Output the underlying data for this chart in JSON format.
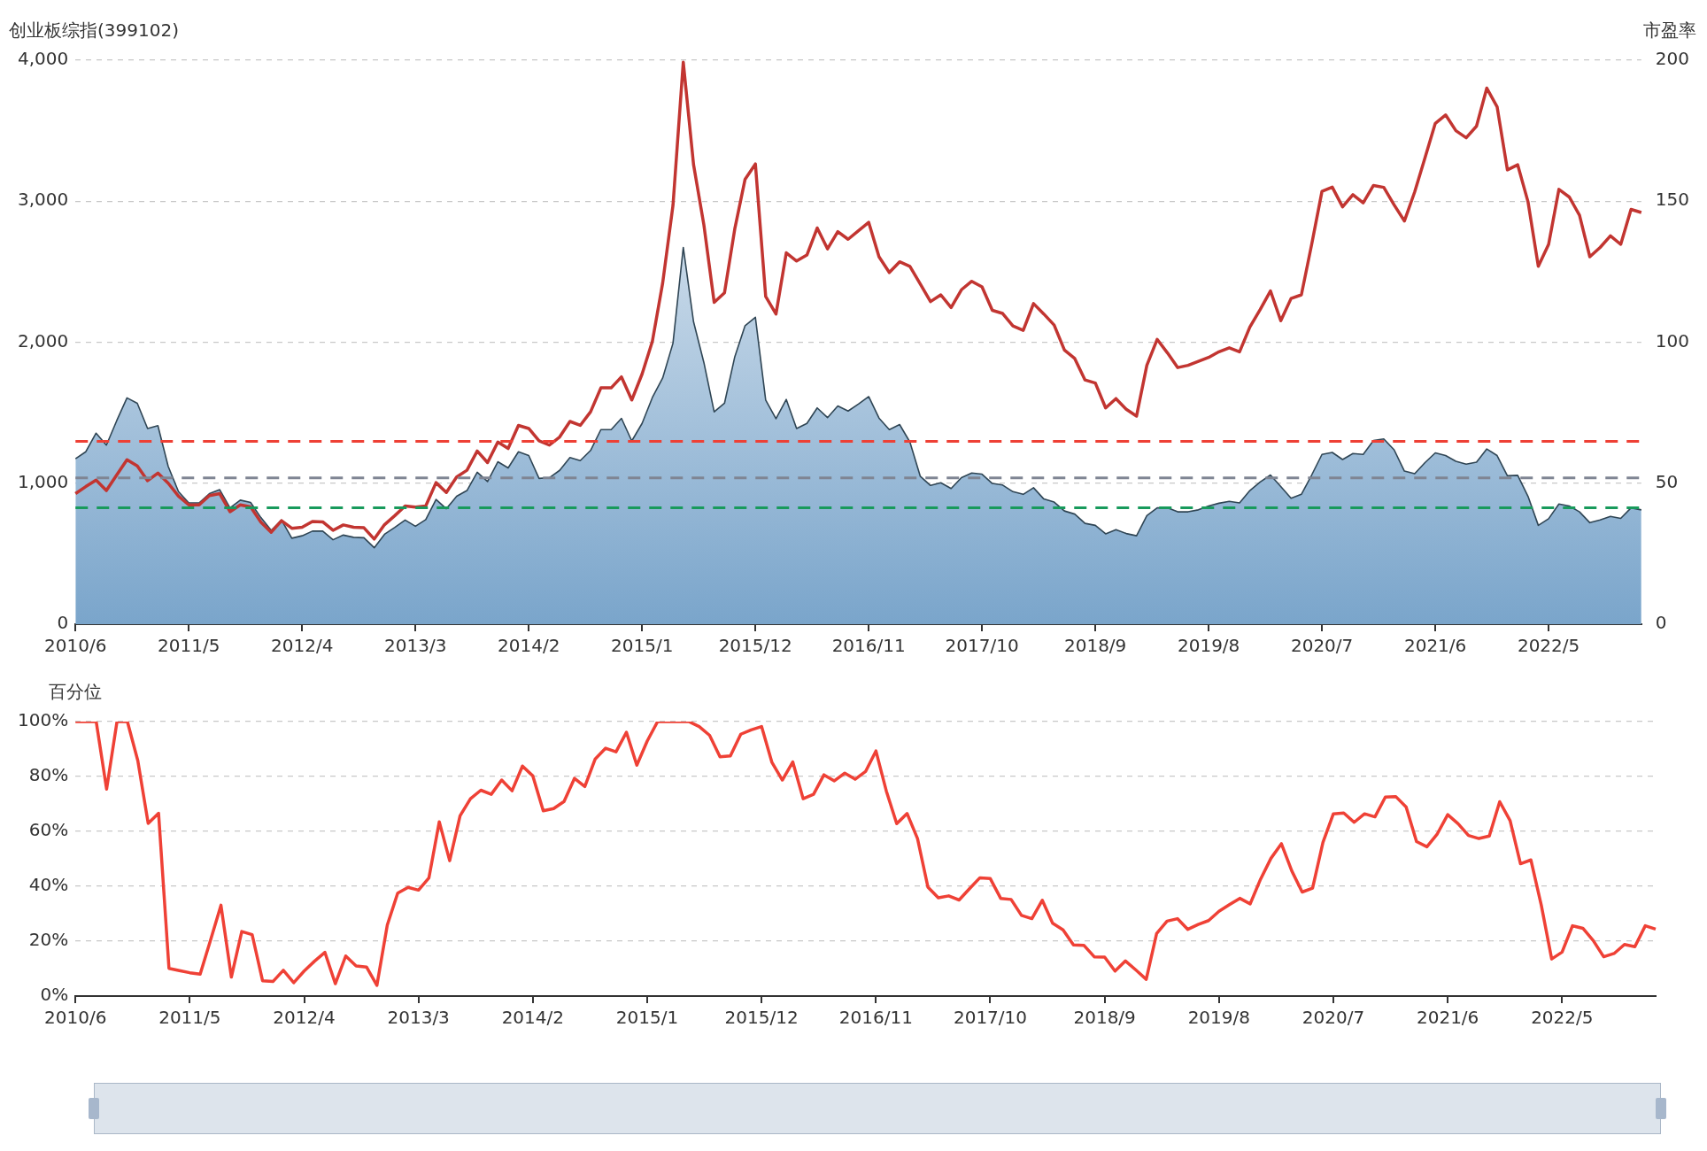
{
  "chart_data": [
    {
      "type": "area",
      "ylabel": "创业板综指(399102)",
      "y2label": "市盈率",
      "categories": [
        "2010/6",
        null,
        null,
        null,
        null,
        null,
        null,
        null,
        null,
        null,
        null,
        "2011/5",
        null,
        null,
        null,
        null,
        null,
        null,
        null,
        null,
        null,
        null,
        "2012/4",
        null,
        null,
        null,
        null,
        null,
        null,
        null,
        null,
        null,
        null,
        "2013/3",
        null,
        null,
        null,
        null,
        null,
        null,
        null,
        null,
        null,
        null,
        "2014/2",
        null,
        null,
        null,
        null,
        null,
        null,
        null,
        null,
        null,
        null,
        "2015/1",
        null,
        null,
        null,
        null,
        null,
        null,
        null,
        null,
        null,
        null,
        "2015/12",
        null,
        null,
        null,
        null,
        null,
        null,
        null,
        null,
        null,
        null,
        "2016/11",
        null,
        null,
        null,
        null,
        null,
        null,
        null,
        null,
        null,
        null,
        "2017/10",
        null,
        null,
        null,
        null,
        null,
        null,
        null,
        null,
        null,
        null,
        "2018/9",
        null,
        null,
        null,
        null,
        null,
        null,
        null,
        null,
        null,
        null,
        "2019/8",
        null,
        null,
        null,
        null,
        null,
        null,
        null,
        null,
        null,
        null,
        "2020/7",
        null,
        null,
        null,
        null,
        null,
        null,
        null,
        null,
        null,
        null,
        "2021/6",
        null,
        null,
        null,
        null,
        null,
        null,
        null,
        null,
        null,
        null,
        "2022/5",
        null,
        null,
        null,
        null,
        null,
        null,
        null,
        null,
        null
      ],
      "series": [
        {
          "color": "#7aa5cb",
          "values": [
            1174,
            1223,
            1355,
            1270,
            1443,
            1605,
            1567,
            1388,
            1408,
            1119,
            940,
            860,
            860,
            926,
            954,
            825,
            880,
            863,
            756,
            665,
            739,
            610,
            627,
            660,
            660,
            599,
            632,
            616,
            613,
            542,
            638,
            687,
            739,
            695,
            742,
            885,
            819,
            907,
            948,
            1078,
            1012,
            1152,
            1108,
            1223,
            1196,
            1034,
            1039,
            1091,
            1182,
            1160,
            1232,
            1380,
            1380,
            1460,
            1300,
            1424,
            1608,
            1746,
            1993,
            2672,
            2144,
            1856,
            1506,
            1567,
            1897,
            2117,
            2177,
            1589,
            1457,
            1594,
            1388,
            1424,
            1534,
            1465,
            1548,
            1512,
            1561,
            1614,
            1462,
            1380,
            1416,
            1292,
            1050,
            984,
            1003,
            962,
            1039,
            1072,
            1064,
            998,
            987,
            940,
            921,
            968,
            888,
            866,
            803,
            781,
            715,
            701,
            641,
            671,
            643,
            627,
            770,
            825,
            825,
            797,
            797,
            811,
            838,
            858,
            871,
            860,
            948,
            1009,
            1058,
            976,
            893,
            921,
            1058,
            1204,
            1218,
            1168,
            1210,
            1204,
            1303,
            1314,
            1237,
            1086,
            1067,
            1146,
            1215,
            1196,
            1155,
            1135,
            1149,
            1243,
            1196,
            1053,
            1056,
            907,
            701,
            748,
            852,
            838,
            797,
            720,
            739,
            764,
            750,
            825,
            811
          ]
        },
        {
          "type": "line",
          "axis": "y2",
          "color": "#c23531",
          "values": [
            46.3,
            48.8,
            51.1,
            47.4,
            52.9,
            58.3,
            56.1,
            50.9,
            53.6,
            50.0,
            45.4,
            42.3,
            42.3,
            45.6,
            46.3,
            39.9,
            42.3,
            41.6,
            36.2,
            32.6,
            36.7,
            34.0,
            34.4,
            36.4,
            36.3,
            33.3,
            35.2,
            34.4,
            34.2,
            30.2,
            35.3,
            38.5,
            41.9,
            41.5,
            41.9,
            50.2,
            46.7,
            52.2,
            54.6,
            61.4,
            57.3,
            64.6,
            62.3,
            70.5,
            69.4,
            65.0,
            63.5,
            66.4,
            71.9,
            70.5,
            75.3,
            83.8,
            83.8,
            87.7,
            79.5,
            88.7,
            100.3,
            121,
            148.5,
            199.3,
            162.9,
            141.6,
            114.1,
            117.5,
            140.2,
            157.8,
            163.2,
            116.2,
            110,
            131.7,
            128.8,
            130.9,
            140.5,
            133.1,
            139.2,
            136.5,
            139.5,
            142.5,
            130.3,
            124.7,
            128.5,
            126.9,
            120.7,
            114.4,
            116.8,
            112.3,
            118.6,
            121.6,
            119.6,
            111.3,
            110.2,
            105.8,
            104.2,
            113.7,
            110,
            106.1,
            97.2,
            94.2,
            86.6,
            85.5,
            76.7,
            80,
            76.2,
            73.8,
            91.8,
            101,
            96.2,
            91,
            91.8,
            93.2,
            94.6,
            96.6,
            98,
            96.6,
            105.4,
            111.6,
            118.2,
            107.6,
            115.5,
            116.8,
            134.7,
            153.5,
            155,
            148,
            152.3,
            149.4,
            155.6,
            154.9,
            148.7,
            143,
            153.3,
            165.4,
            177.6,
            180.6,
            175,
            172.5,
            176.6,
            190.1,
            183.5,
            161.1,
            162.9,
            149.8,
            126.9,
            134.7,
            154.2,
            151.5,
            145,
            130.3,
            133.6,
            137.7,
            134.7,
            147.1,
            146
          ]
        }
      ],
      "ylim": [
        0,
        4000
      ],
      "yticks": [
        0,
        {
          "value": 1000,
          "label": "1,000"
        },
        {
          "value": 2000,
          "label": "2,000"
        },
        {
          "value": 3000,
          "label": "3,000"
        },
        {
          "value": 4000,
          "label": "4,000"
        }
      ],
      "y2lim": [
        0,
        200
      ],
      "y2ticks": [
        0,
        50,
        100,
        150,
        200
      ],
      "ref_lines": [
        {
          "axis": "y2",
          "value": 64.8,
          "color": "#ee4035",
          "line_style": "dashed"
        },
        {
          "axis": "y2",
          "value": 51.9,
          "color": "#7f8593",
          "line_style": "dashed"
        },
        {
          "axis": "y2",
          "value": 41.3,
          "color": "#189a5c",
          "line_style": "dashed"
        }
      ],
      "grid": "y"
    },
    {
      "type": "line",
      "ylabel": "百分位",
      "categories": [
        "2010/6",
        null,
        null,
        null,
        null,
        null,
        null,
        null,
        null,
        null,
        null,
        "2011/5",
        null,
        null,
        null,
        null,
        null,
        null,
        null,
        null,
        null,
        null,
        "2012/4",
        null,
        null,
        null,
        null,
        null,
        null,
        null,
        null,
        null,
        null,
        "2013/3",
        null,
        null,
        null,
        null,
        null,
        null,
        null,
        null,
        null,
        null,
        "2014/2",
        null,
        null,
        null,
        null,
        null,
        null,
        null,
        null,
        null,
        null,
        "2015/1",
        null,
        null,
        null,
        null,
        null,
        null,
        null,
        null,
        null,
        null,
        "2015/12",
        null,
        null,
        null,
        null,
        null,
        null,
        null,
        null,
        null,
        null,
        "2016/11",
        null,
        null,
        null,
        null,
        null,
        null,
        null,
        null,
        null,
        null,
        "2017/10",
        null,
        null,
        null,
        null,
        null,
        null,
        null,
        null,
        null,
        null,
        "2018/9",
        null,
        null,
        null,
        null,
        null,
        null,
        null,
        null,
        null,
        null,
        "2019/8",
        null,
        null,
        null,
        null,
        null,
        null,
        null,
        null,
        null,
        null,
        "2020/7",
        null,
        null,
        null,
        null,
        null,
        null,
        null,
        null,
        null,
        null,
        "2021/6",
        null,
        null,
        null,
        null,
        null,
        null,
        null,
        null,
        null,
        null,
        "2022/5",
        null,
        null,
        null,
        null,
        null,
        null,
        null,
        null,
        null
      ],
      "color": "#ef4136",
      "values": [
        100,
        100,
        100,
        75.4,
        100,
        100,
        85.8,
        62.9,
        66.6,
        10.1,
        9.3,
        8.5,
        8.0,
        20.4,
        33.1,
        6.9,
        23.5,
        22.4,
        5.6,
        5.3,
        9.4,
        4.9,
        9.1,
        12.7,
        15.9,
        4.5,
        14.6,
        11,
        10.6,
        3.9,
        25.9,
        37.5,
        39.6,
        38.6,
        43,
        63.5,
        49.3,
        65.7,
        71.9,
        75,
        73.5,
        78.7,
        74.8,
        83.8,
        80.2,
        67.5,
        68.3,
        70.9,
        79.3,
        76.3,
        86.4,
        90.3,
        89,
        96.1,
        84.1,
        92.9,
        100,
        100,
        100,
        100,
        98.2,
        95,
        87.2,
        87.5,
        95.4,
        97,
        98.2,
        85.1,
        78.7,
        85.3,
        71.9,
        73.5,
        80.6,
        78.4,
        81.2,
        79,
        81.8,
        89.3,
        74.7,
        62.8,
        66.5,
        57.4,
        39.7,
        35.8,
        36.5,
        35,
        39.1,
        43.1,
        42.8,
        35.6,
        35.2,
        29.4,
        28.2,
        34.9,
        26.5,
        24.1,
        18.6,
        18.5,
        14.3,
        14.2,
        9.1,
        12.8,
        9.5,
        6.1,
        22.8,
        27.3,
        28.2,
        24.3,
        26.1,
        27.5,
        30.9,
        33.3,
        35.6,
        33.6,
        42.6,
        50.2,
        55.5,
        45.6,
        37.9,
        39.3,
        56,
        66.4,
        66.7,
        63.3,
        66.4,
        65.3,
        72.5,
        72.7,
        68.9,
        56.3,
        54.4,
        59.1,
        66.1,
        62.8,
        58.5,
        57.4,
        58.3,
        70.8,
        63.9,
        48.2,
        49.6,
        33.1,
        13.5,
        16,
        25.6,
        24.7,
        20.2,
        14.3,
        15.5,
        18.8,
        18,
        25.6,
        24.4
      ],
      "ylim": [
        0,
        100
      ],
      "yticks": [
        {
          "value": 0,
          "label": "0%"
        },
        {
          "value": 20,
          "label": "20%"
        },
        {
          "value": 40,
          "label": "40%"
        },
        {
          "value": 60,
          "label": "60%"
        },
        {
          "value": 80,
          "label": "80%"
        },
        {
          "value": 100,
          "label": "100%"
        }
      ],
      "grid": "y"
    }
  ]
}
